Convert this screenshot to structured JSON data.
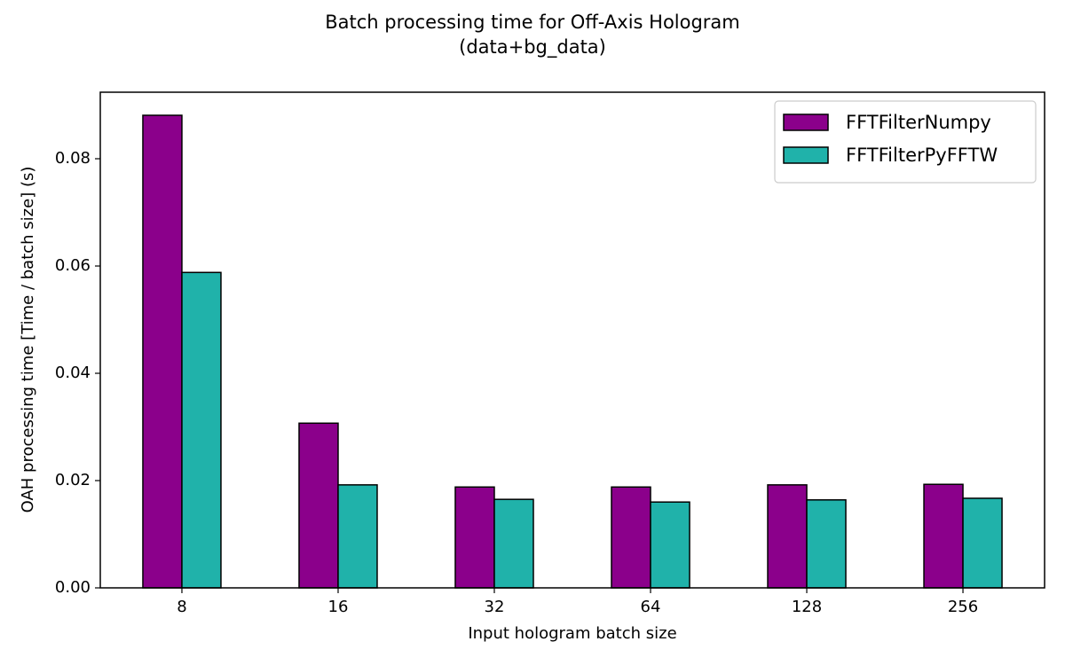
{
  "chart_data": {
    "type": "bar",
    "title": [
      "Batch processing time for Off-Axis Hologram",
      "(data+bg_data)"
    ],
    "xlabel": "Input hologram batch size",
    "ylabel": "OAH processing time [Time / batch size] (s)",
    "categories": [
      "8",
      "16",
      "32",
      "64",
      "128",
      "256"
    ],
    "series": [
      {
        "name": "FFTFilterNumpy",
        "color": "#8b008b",
        "values": [
          0.0881,
          0.0307,
          0.0188,
          0.0188,
          0.0192,
          0.0193
        ]
      },
      {
        "name": "FFTFilterPyFFTW",
        "color": "#20b2aa",
        "values": [
          0.0588,
          0.0192,
          0.0165,
          0.016,
          0.0164,
          0.0167
        ]
      }
    ],
    "ylim": [
      0,
      0.0924
    ],
    "yticks": [
      {
        "value": 0,
        "label": "0.00"
      },
      {
        "value": 0.02,
        "label": "0.02"
      },
      {
        "value": 0.04,
        "label": "0.04"
      },
      {
        "value": 0.06,
        "label": "0.06"
      },
      {
        "value": 0.08,
        "label": "0.08"
      }
    ],
    "grid": false,
    "legend": "upper right"
  }
}
